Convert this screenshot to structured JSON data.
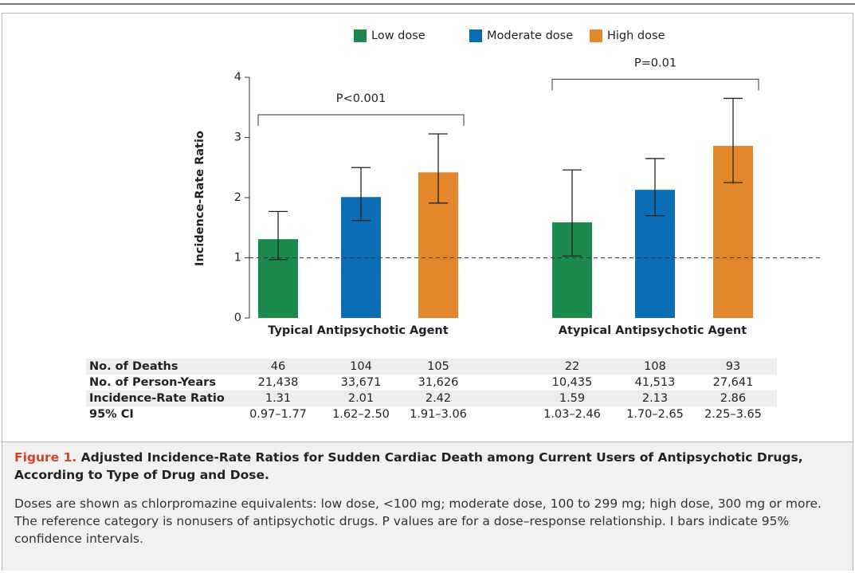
{
  "chart_data": {
    "type": "bar",
    "ylabel": "Incidence-Rate Ratio",
    "categories": [
      "Typical Antipsychotic Agent",
      "Atypical Antipsychotic Agent"
    ],
    "series": [
      {
        "name": "Low dose",
        "color": "#1b8a4c",
        "values": [
          1.31,
          1.59
        ],
        "ci_low": [
          0.97,
          1.03
        ],
        "ci_high": [
          1.77,
          2.46
        ]
      },
      {
        "name": "Moderate dose",
        "color": "#0b6db3",
        "values": [
          2.01,
          2.13
        ],
        "ci_low": [
          1.62,
          1.7
        ],
        "ci_high": [
          2.5,
          2.65
        ]
      },
      {
        "name": "High dose",
        "color": "#e2872a",
        "values": [
          2.42,
          2.86
        ],
        "ci_low": [
          1.91,
          2.25
        ],
        "ci_high": [
          3.06,
          3.65
        ]
      }
    ],
    "annotations": [
      "P<0.001",
      "P=0.01"
    ],
    "reference_line": 1,
    "ylim": [
      0,
      4
    ],
    "yticks": [
      0,
      1,
      2,
      3,
      4
    ],
    "table": {
      "rows": [
        {
          "label": "No. of Deaths",
          "cells": [
            46,
            104,
            105,
            22,
            108,
            93
          ]
        },
        {
          "label": "No. of Person-Years",
          "cells": [
            "21,438",
            "33,671",
            "31,626",
            "10,435",
            "41,513",
            "27,641"
          ]
        },
        {
          "label": "Incidence-Rate Ratio",
          "cells": [
            1.31,
            2.01,
            2.42,
            1.59,
            2.13,
            2.86
          ]
        },
        {
          "label": "95% CI",
          "cells": [
            "0.97–1.77",
            "1.62–2.50",
            "1.91–3.06",
            "1.03–2.46",
            "1.70–2.65",
            "2.25–3.65"
          ]
        }
      ]
    }
  },
  "caption": {
    "label": "Figure 1.",
    "title": "Adjusted Incidence-Rate Ratios for Sudden Cardiac Death among Current Users of Antipsychotic Drugs, According to Type of Drug and Dose.",
    "text": "Doses are shown as chlorpromazine equivalents: low dose, <100 mg; moderate dose, 100 to 299 mg; high dose, 300 mg or more. The reference category is nonusers of antipsychotic drugs. P values are for a dose–response relationship. I bars indicate 95% confidence intervals."
  }
}
